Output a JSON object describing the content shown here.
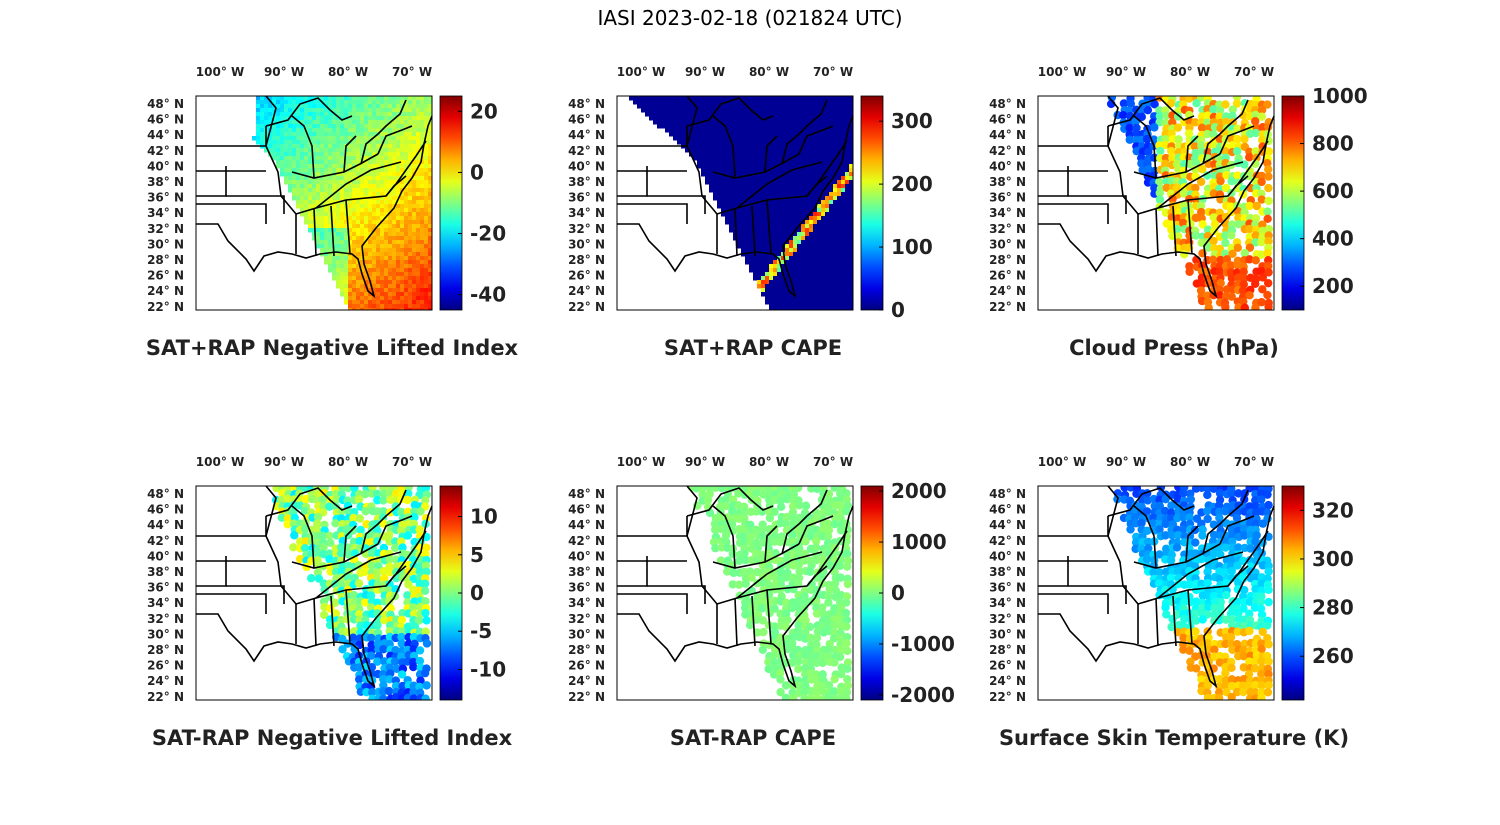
{
  "figure": {
    "title": "IASI 2023-02-18 (021824 UTC)",
    "lon_ticks": [
      "100",
      "90",
      "80",
      "70"
    ],
    "lon_suffix": "W",
    "lat_ticks": [
      "48",
      "46",
      "44",
      "42",
      "40",
      "38",
      "36",
      "34",
      "32",
      "30",
      "28",
      "26",
      "24",
      "22"
    ],
    "lat_suffix": "N",
    "degree_symbol": "°",
    "colormap": "jet"
  },
  "panels": [
    {
      "id": "sat-rap-plus-nli",
      "caption": "SAT+RAP Negative Lifted Index",
      "colorbar": {
        "range": [
          -45,
          25
        ],
        "ticks": [
          20,
          0,
          -20,
          -40
        ]
      },
      "field": "full"
    },
    {
      "id": "sat-rap-plus-cape",
      "caption": "SAT+RAP CAPE",
      "colorbar": {
        "range": [
          0,
          340
        ],
        "ticks": [
          300,
          200,
          100,
          0
        ]
      },
      "field": "full"
    },
    {
      "id": "cloud-press",
      "caption": "Cloud Press (hPa)",
      "colorbar": {
        "range": [
          100,
          1000
        ],
        "ticks": [
          1000,
          800,
          600,
          400,
          200
        ]
      },
      "field": "dots"
    },
    {
      "id": "sat-rap-minus-nli",
      "caption": "SAT-RAP Negative Lifted Index",
      "colorbar": {
        "range": [
          -14,
          14
        ],
        "ticks": [
          10,
          5,
          0,
          -5,
          -10
        ]
      },
      "field": "dots"
    },
    {
      "id": "sat-rap-minus-cape",
      "caption": "SAT-RAP CAPE",
      "colorbar": {
        "range": [
          -2100,
          2100
        ],
        "ticks": [
          2000,
          1000,
          0,
          -1000,
          -2000
        ]
      },
      "field": "dots"
    },
    {
      "id": "surface-skin-temp",
      "caption": "Surface Skin Temperature (K)",
      "colorbar": {
        "range": [
          242,
          330
        ],
        "ticks": [
          320,
          300,
          280,
          260
        ]
      },
      "field": "dots"
    }
  ]
}
